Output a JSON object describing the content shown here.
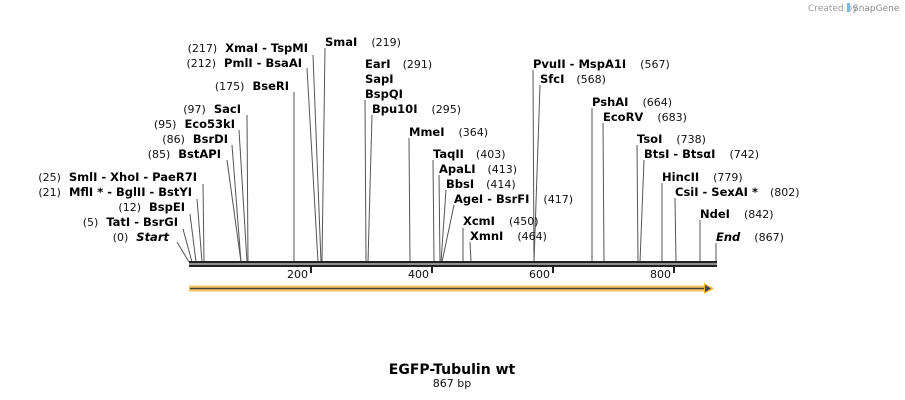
{
  "watermark": {
    "prefix": "Created by",
    "brand": "SnapGene"
  },
  "map": {
    "title": "EGFP-Tubulin wt",
    "length_label": "867 bp",
    "length_bp": 867
  },
  "ruler": {
    "ticks": [
      "200",
      "400",
      "600",
      "800"
    ]
  },
  "feature": {
    "color": "#f5b43c",
    "direction": "forward"
  },
  "sites_left": [
    {
      "name": "XmaI  - TspMI",
      "pos": "(217)"
    },
    {
      "name": "PmlI  - BsaAI",
      "pos": "(212)"
    },
    {
      "name": "BseRI",
      "pos": "(175)"
    },
    {
      "name": "SacI",
      "pos": "(97)"
    },
    {
      "name": "Eco53kI",
      "pos": "(95)"
    },
    {
      "name": "BsrDI",
      "pos": "(86)"
    },
    {
      "name": "BstAPI",
      "pos": "(85)"
    },
    {
      "name": "SmlI  - XhoI  - PaeR7I",
      "pos": "(25)"
    },
    {
      "name": "MflI * - BglII  - BstYI",
      "pos": "(21)"
    },
    {
      "name": "BspEI",
      "pos": "(12)"
    },
    {
      "name": "TatI  - BsrGI",
      "pos": "(5)"
    },
    {
      "name": "Start",
      "pos": "(0)"
    }
  ],
  "sites_right": [
    {
      "name": "SmaI",
      "pos": "(219)"
    },
    {
      "name": "EarI",
      "pos": "(291)"
    },
    {
      "name": "SapI",
      "pos": ""
    },
    {
      "name": "BspQI",
      "pos": ""
    },
    {
      "name": "Bpu10I",
      "pos": "(295)"
    },
    {
      "name": "MmeI",
      "pos": "(364)"
    },
    {
      "name": "TaqII",
      "pos": "(403)"
    },
    {
      "name": "ApaLI",
      "pos": "(413)"
    },
    {
      "name": "BbsI",
      "pos": "(414)"
    },
    {
      "name": "AgeI  - BsrFI",
      "pos": "(417)"
    },
    {
      "name": "XcmI",
      "pos": "(450)"
    },
    {
      "name": "XmnI",
      "pos": "(464)"
    },
    {
      "name": "PvuII  - MspA1I",
      "pos": "(567)"
    },
    {
      "name": "SfcI",
      "pos": "(568)"
    },
    {
      "name": "PshAI",
      "pos": "(664)"
    },
    {
      "name": "EcoRV",
      "pos": "(683)"
    },
    {
      "name": "TsoI",
      "pos": "(738)"
    },
    {
      "name": "BtsI  - BtsαI",
      "pos": "(742)"
    },
    {
      "name": "HincII",
      "pos": "(779)"
    },
    {
      "name": "CsiI  - SexAI *",
      "pos": "(802)"
    },
    {
      "name": "NdeI",
      "pos": "(842)"
    },
    {
      "name": "End",
      "pos": "(867)"
    }
  ]
}
